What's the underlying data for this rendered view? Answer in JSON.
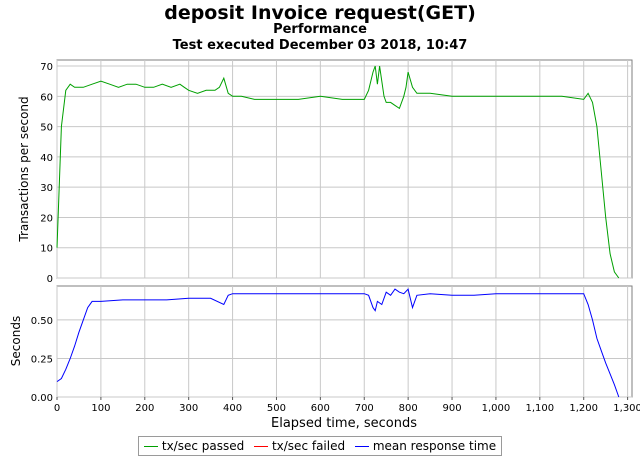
{
  "title": "deposit Invoice request(GET)",
  "subtitle": "Performance",
  "test_executed": "Test executed December 03 2018, 10:47",
  "colors": {
    "passed": "#00a000",
    "failed": "#ff0000",
    "mean": "#0000ff",
    "grid": "#c8c8c8"
  },
  "legend": [
    {
      "label": "tx/sec passed",
      "color": "#00a000"
    },
    {
      "label": "tx/sec failed",
      "color": "#ff0000"
    },
    {
      "label": "mean response time",
      "color": "#0000ff"
    }
  ],
  "chart_data": [
    {
      "type": "line",
      "ylabel": "Transactions per second",
      "xlim": [
        0,
        1310
      ],
      "ylim": [
        0,
        72
      ],
      "yticks": [
        0,
        10,
        20,
        30,
        40,
        50,
        60,
        70
      ],
      "series": [
        {
          "name": "tx/sec passed",
          "x": [
            0,
            5,
            10,
            20,
            30,
            40,
            60,
            80,
            100,
            120,
            140,
            160,
            180,
            200,
            220,
            240,
            260,
            280,
            290,
            300,
            320,
            340,
            360,
            370,
            380,
            390,
            400,
            420,
            450,
            500,
            550,
            600,
            650,
            700,
            710,
            720,
            725,
            730,
            735,
            740,
            745,
            750,
            760,
            770,
            780,
            790,
            795,
            800,
            810,
            820,
            830,
            850,
            900,
            950,
            1000,
            1050,
            1100,
            1150,
            1200,
            1210,
            1220,
            1230,
            1240,
            1250,
            1260,
            1270,
            1280
          ],
          "values": [
            10,
            30,
            50,
            62,
            64,
            63,
            63,
            64,
            65,
            64,
            63,
            64,
            64,
            63,
            63,
            64,
            63,
            64,
            63,
            62,
            61,
            62,
            62,
            63,
            66,
            61,
            60,
            60,
            59,
            59,
            59,
            60,
            59,
            59,
            62,
            68,
            70,
            64,
            70,
            65,
            60,
            58,
            58,
            57,
            56,
            60,
            63,
            68,
            63,
            61,
            61,
            61,
            60,
            60,
            60,
            60,
            60,
            60,
            59,
            61,
            58,
            50,
            35,
            20,
            8,
            2,
            0
          ]
        }
      ]
    },
    {
      "type": "line",
      "xlabel": "Elapsed time, seconds",
      "ylabel": "Seconds",
      "xlim": [
        0,
        1310
      ],
      "ylim": [
        0,
        0.72
      ],
      "yticks": [
        "0.00",
        "0.25",
        "0.50"
      ],
      "xticks": [
        "0",
        "100",
        "200",
        "300",
        "400",
        "500",
        "600",
        "700",
        "800",
        "900",
        "1,000",
        "1,100",
        "1,200",
        "1,300"
      ],
      "series": [
        {
          "name": "mean response time",
          "x": [
            0,
            10,
            20,
            30,
            40,
            50,
            60,
            70,
            80,
            100,
            150,
            200,
            250,
            300,
            350,
            380,
            390,
            400,
            450,
            500,
            550,
            600,
            650,
            700,
            710,
            720,
            725,
            730,
            740,
            750,
            760,
            770,
            780,
            790,
            800,
            810,
            820,
            850,
            900,
            950,
            1000,
            1050,
            1100,
            1150,
            1200,
            1210,
            1220,
            1230,
            1240,
            1250,
            1260,
            1270,
            1280
          ],
          "values": [
            0.1,
            0.12,
            0.18,
            0.25,
            0.33,
            0.42,
            0.5,
            0.58,
            0.62,
            0.62,
            0.63,
            0.63,
            0.63,
            0.64,
            0.64,
            0.6,
            0.66,
            0.67,
            0.67,
            0.67,
            0.67,
            0.67,
            0.67,
            0.67,
            0.66,
            0.58,
            0.56,
            0.62,
            0.6,
            0.68,
            0.66,
            0.7,
            0.68,
            0.67,
            0.7,
            0.58,
            0.66,
            0.67,
            0.66,
            0.66,
            0.67,
            0.67,
            0.67,
            0.67,
            0.67,
            0.6,
            0.5,
            0.38,
            0.3,
            0.22,
            0.15,
            0.08,
            0.0
          ]
        }
      ]
    }
  ]
}
